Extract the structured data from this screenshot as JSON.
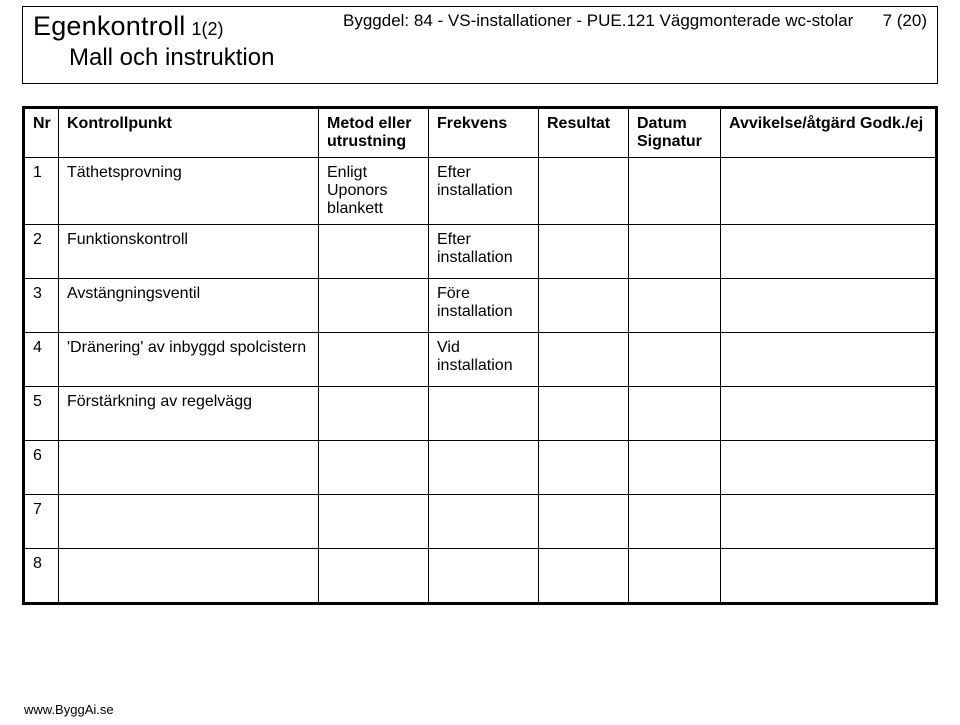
{
  "header": {
    "title_main": "Egenkontroll",
    "title_fraction": "1(2)",
    "subtitle": "Mall och instruktion",
    "byggdel": "Byggdel: 84 - VS-installationer - PUE.121 Väggmonterade wc-stolar",
    "page_number": "7 (20)"
  },
  "table": {
    "headers": {
      "nr": "Nr",
      "kontrollpunkt": "Kontrollpunkt",
      "metod": "Metod eller utrustning",
      "frekvens": "Frekvens",
      "resultat": "Resultat",
      "datum": "Datum Signatur",
      "avvikelse": "Avvikelse/åtgärd Godk./ej"
    },
    "rows": [
      {
        "nr": "1",
        "kp": "Täthetsprovning",
        "metod": "Enligt Uponors blankett",
        "frek": "Efter installation",
        "res": "",
        "dat": "",
        "avv": ""
      },
      {
        "nr": "2",
        "kp": "Funktionskontroll",
        "metod": "",
        "frek": "Efter installation",
        "res": "",
        "dat": "",
        "avv": ""
      },
      {
        "nr": "3",
        "kp": "Avstängningsventil",
        "metod": "",
        "frek": "Före installation",
        "res": "",
        "dat": "",
        "avv": ""
      },
      {
        "nr": "4",
        "kp": "'Dränering' av inbyggd spolcistern",
        "metod": "",
        "frek": "Vid installation",
        "res": "",
        "dat": "",
        "avv": ""
      },
      {
        "nr": "5",
        "kp": "Förstärkning av regelvägg",
        "metod": "",
        "frek": "",
        "res": "",
        "dat": "",
        "avv": ""
      },
      {
        "nr": "6",
        "kp": "",
        "metod": "",
        "frek": "",
        "res": "",
        "dat": "",
        "avv": ""
      },
      {
        "nr": "7",
        "kp": "",
        "metod": "",
        "frek": "",
        "res": "",
        "dat": "",
        "avv": ""
      },
      {
        "nr": "8",
        "kp": "",
        "metod": "",
        "frek": "",
        "res": "",
        "dat": "",
        "avv": ""
      }
    ]
  },
  "footer": {
    "url": "www.ByggAi.se"
  },
  "style": {
    "page_bg": "#ffffff",
    "text_color": "#000000",
    "border_color": "#000000",
    "font_family": "Arial",
    "title_fontsize": 27,
    "subtitle_fontsize": 24,
    "header_text_fontsize": 17,
    "table_fontsize": 16,
    "footer_fontsize": 13
  }
}
